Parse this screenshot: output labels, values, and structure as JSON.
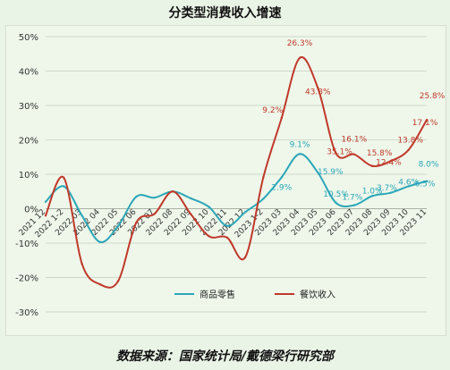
{
  "title": "分类型消费收入增速",
  "source": "数据来源：国家统计局/戴德梁行研究部",
  "colors": {
    "retail": "#2aa6b8",
    "catering": "#c0392b"
  },
  "chart_data": {
    "type": "line",
    "title": "分类型消费收入增速",
    "categories": [
      "2021 12",
      "2022 1-2",
      "2022 03",
      "2022 04",
      "2022 05",
      "2022 06",
      "2022 07",
      "2022 08",
      "2022 09",
      "2022 10",
      "2022 11",
      "2022 12",
      "2023 1-2",
      "2023 03",
      "2023 04",
      "2023 05",
      "2023 06",
      "2023 07",
      "2023 08",
      "2023 09",
      "2023 10",
      "2023 11"
    ],
    "series": [
      {
        "name": "商品零售",
        "values": [
          2.0,
          6.5,
          -2.0,
          -9.7,
          -5.0,
          3.5,
          3.2,
          5.0,
          3.0,
          0.5,
          -5.0,
          -1.0,
          2.9,
          9.1,
          15.9,
          10.5,
          1.7,
          1.0,
          3.7,
          4.6,
          6.5,
          8.0
        ]
      },
      {
        "name": "餐饮收入",
        "values": [
          -2.0,
          9.0,
          -16.0,
          -22.0,
          -21.0,
          -4.0,
          -1.5,
          5.0,
          -1.6,
          -8.0,
          -8.4,
          -14.1,
          9.2,
          26.3,
          43.8,
          35.1,
          16.1,
          15.8,
          12.4,
          13.8,
          17.1,
          25.8
        ]
      }
    ],
    "labels": {
      "retail": [
        {
          "index": 13,
          "text": "2.9%"
        },
        {
          "index": 14,
          "text": "9.1%"
        },
        {
          "index": 15,
          "text": "15.9%"
        },
        {
          "index": 16,
          "text": "10.5%"
        },
        {
          "index": 17,
          "text": "1.7%"
        },
        {
          "index": 18,
          "text": "1.0%"
        },
        {
          "index": 19,
          "text": "3.7%"
        },
        {
          "index": 20,
          "text": "4.6%"
        },
        {
          "index": 21,
          "text": "6.5%"
        },
        {
          "index": 21,
          "text": "8.0%"
        }
      ],
      "catering": [
        {
          "index": 13,
          "text": "9.2%"
        },
        {
          "index": 14,
          "text": "26.3%"
        },
        {
          "index": 15,
          "text": "43.8%"
        },
        {
          "index": 16,
          "text": "35.1%"
        },
        {
          "index": 17,
          "text": "16.1%"
        },
        {
          "index": 18,
          "text": "15.8%"
        },
        {
          "index": 19,
          "text": "12.4%"
        },
        {
          "index": 20,
          "text": "13.8%"
        },
        {
          "index": 21,
          "text": "17.1%"
        },
        {
          "index": 21,
          "text": "25.8%"
        }
      ]
    },
    "ylim": [
      -30,
      50
    ],
    "yticks": [
      "-30%",
      "-20%",
      "-10%",
      "0%",
      "10%",
      "20%",
      "30%",
      "40%",
      "50%"
    ],
    "grid": true,
    "legend": "bottom"
  }
}
